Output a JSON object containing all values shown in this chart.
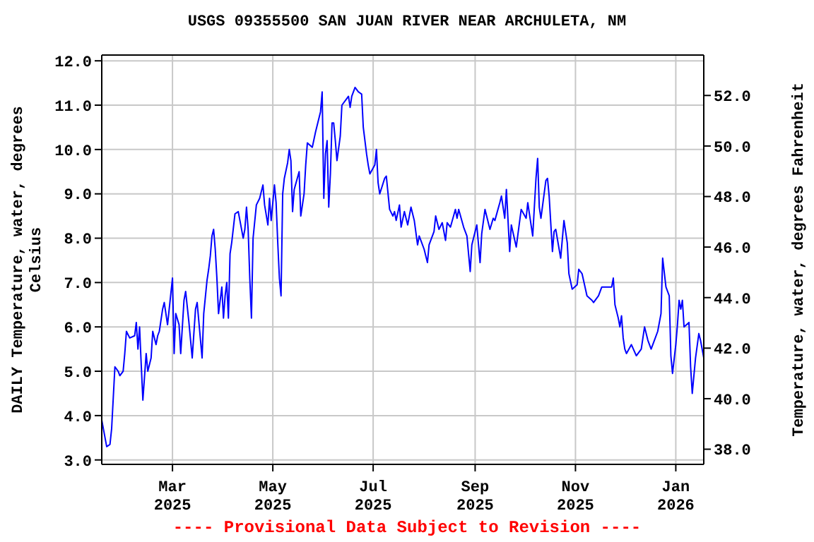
{
  "chart_data": {
    "type": "line",
    "title": "USGS 09355500 SAN JUAN RIVER NEAR ARCHULETA, NM",
    "ylabel": "DAILY Temperature, water, degrees Celsius",
    "y2label": "Temperature, water, degrees Fahrenheit",
    "annotations": [
      "---- Provisional Data Subject to Revision ----"
    ],
    "xlim": [
      "2025-01-17",
      "2026-01-18"
    ],
    "xticks": [
      {
        "value": "2025-03-01",
        "label": "Mar 2025"
      },
      {
        "value": "2025-05-01",
        "label": "May 2025"
      },
      {
        "value": "2025-07-01",
        "label": "Jul 2025"
      },
      {
        "value": "2025-09-01",
        "label": "Sep 2025"
      },
      {
        "value": "2025-11-01",
        "label": "Nov 2025"
      },
      {
        "value": "2026-01-01",
        "label": "Jan 2026"
      }
    ],
    "ylim": [
      2.9,
      12.13
    ],
    "yticks": [
      {
        "value": 3,
        "label": "3.0"
      },
      {
        "value": 4,
        "label": "4.0"
      },
      {
        "value": 5,
        "label": "5.0"
      },
      {
        "value": 6,
        "label": "6.0"
      },
      {
        "value": 7,
        "label": "7.0"
      },
      {
        "value": 8,
        "label": "8.0"
      },
      {
        "value": 9,
        "label": "9.0"
      },
      {
        "value": 10,
        "label": "10.0"
      },
      {
        "value": 11,
        "label": "11.0"
      },
      {
        "value": 12,
        "label": "12.0"
      }
    ],
    "y2lim": [
      37.4,
      53.6
    ],
    "y2ticks": [
      {
        "value": 38,
        "label": "38.0"
      },
      {
        "value": 40,
        "label": "40.0"
      },
      {
        "value": 42,
        "label": "42.0"
      },
      {
        "value": 44,
        "label": "44.0"
      },
      {
        "value": 46,
        "label": "46.0"
      },
      {
        "value": 48,
        "label": "48.0"
      },
      {
        "value": 50,
        "label": "50.0"
      },
      {
        "value": 52,
        "label": "52.0"
      }
    ],
    "grid": true,
    "legend": false,
    "marker": "none",
    "line_style": "solid",
    "series": [
      {
        "color": "#0000ff",
        "x": [
          "2025-01-17",
          "2025-01-20",
          "2025-01-22",
          "2025-01-23",
          "2025-01-25",
          "2025-01-27",
          "2025-01-28",
          "2025-01-30",
          "2025-01-31",
          "2025-02-01",
          "2025-02-03",
          "2025-02-06",
          "2025-02-07",
          "2025-02-08",
          "2025-02-09",
          "2025-02-10",
          "2025-02-11",
          "2025-02-13",
          "2025-02-14",
          "2025-02-16",
          "2025-02-17",
          "2025-02-19",
          "2025-02-20",
          "2025-02-21",
          "2025-02-23",
          "2025-02-24",
          "2025-02-26",
          "2025-02-27",
          "2025-03-01",
          "2025-03-02",
          "2025-03-03",
          "2025-03-05",
          "2025-03-06",
          "2025-03-08",
          "2025-03-09",
          "2025-03-11",
          "2025-03-13",
          "2025-03-15",
          "2025-03-16",
          "2025-03-19",
          "2025-03-20",
          "2025-03-22",
          "2025-03-23",
          "2025-03-24",
          "2025-03-25",
          "2025-03-26",
          "2025-03-27",
          "2025-03-28",
          "2025-03-29",
          "2025-03-31",
          "2025-04-01",
          "2025-04-02",
          "2025-04-03",
          "2025-04-04",
          "2025-04-05",
          "2025-04-06",
          "2025-04-08",
          "2025-04-10",
          "2025-04-11",
          "2025-04-13",
          "2025-04-14",
          "2025-04-15",
          "2025-04-16",
          "2025-04-17",
          "2025-04-18",
          "2025-04-19",
          "2025-04-21",
          "2025-04-23",
          "2025-04-25",
          "2025-04-26",
          "2025-04-28",
          "2025-04-29",
          "2025-04-30",
          "2025-05-02",
          "2025-05-03",
          "2025-05-04",
          "2025-05-05",
          "2025-05-06",
          "2025-05-07",
          "2025-05-08",
          "2025-05-10",
          "2025-05-11",
          "2025-05-12",
          "2025-05-13",
          "2025-05-14",
          "2025-05-17",
          "2025-05-18",
          "2025-05-20",
          "2025-05-21",
          "2025-05-22",
          "2025-05-25",
          "2025-05-27",
          "2025-05-30",
          "2025-05-31",
          "2025-06-01",
          "2025-06-02",
          "2025-06-03",
          "2025-06-04",
          "2025-06-05",
          "2025-06-06",
          "2025-06-07",
          "2025-06-08",
          "2025-06-09",
          "2025-06-11",
          "2025-06-12",
          "2025-06-15",
          "2025-06-16",
          "2025-06-17",
          "2025-06-18",
          "2025-06-20",
          "2025-06-22",
          "2025-06-24",
          "2025-06-25",
          "2025-06-27",
          "2025-06-28",
          "2025-06-29",
          "2025-07-02",
          "2025-07-03",
          "2025-07-04",
          "2025-07-05",
          "2025-07-08",
          "2025-07-09",
          "2025-07-11",
          "2025-07-13",
          "2025-07-14",
          "2025-07-15",
          "2025-07-17",
          "2025-07-18",
          "2025-07-20",
          "2025-07-22",
          "2025-07-24",
          "2025-07-26",
          "2025-07-28",
          "2025-07-29",
          "2025-08-01",
          "2025-08-03",
          "2025-08-04",
          "2025-08-07",
          "2025-08-08",
          "2025-08-10",
          "2025-08-12",
          "2025-08-14",
          "2025-08-15",
          "2025-08-17",
          "2025-08-20",
          "2025-08-21",
          "2025-08-22",
          "2025-08-25",
          "2025-08-27",
          "2025-08-29",
          "2025-08-30",
          "2025-09-02",
          "2025-09-04",
          "2025-09-05",
          "2025-09-07",
          "2025-09-10",
          "2025-09-12",
          "2025-09-13",
          "2025-09-16",
          "2025-09-17",
          "2025-09-19",
          "2025-09-20",
          "2025-09-22",
          "2025-09-23",
          "2025-09-26",
          "2025-09-29",
          "2025-10-02",
          "2025-10-03",
          "2025-10-06",
          "2025-10-08",
          "2025-10-09",
          "2025-10-10",
          "2025-10-11",
          "2025-10-14",
          "2025-10-15",
          "2025-10-16",
          "2025-10-18",
          "2025-10-19",
          "2025-10-20",
          "2025-10-23",
          "2025-10-25",
          "2025-10-27",
          "2025-10-28",
          "2025-10-30",
          "2025-11-02",
          "2025-11-03",
          "2025-11-05",
          "2025-11-08",
          "2025-11-11",
          "2025-11-12",
          "2025-11-15",
          "2025-11-17",
          "2025-11-20",
          "2025-11-23",
          "2025-11-24",
          "2025-11-25",
          "2025-11-27",
          "2025-11-28",
          "2025-11-29",
          "2025-11-30",
          "2025-12-01",
          "2025-12-02",
          "2025-12-05",
          "2025-12-08",
          "2025-12-11",
          "2025-12-13",
          "2025-12-15",
          "2025-12-17",
          "2025-12-19",
          "2025-12-21",
          "2025-12-23",
          "2025-12-24",
          "2025-12-26",
          "2025-12-28",
          "2025-12-29",
          "2025-12-30",
          "2026-01-01",
          "2026-01-02",
          "2026-01-03",
          "2026-01-04",
          "2026-01-05",
          "2026-01-06",
          "2026-01-09",
          "2026-01-10",
          "2026-01-11",
          "2026-01-13",
          "2026-01-15",
          "2026-01-16",
          "2026-01-18"
        ],
        "values": [
          3.9,
          3.3,
          3.35,
          3.7,
          5.1,
          5.0,
          4.9,
          5.0,
          5.4,
          5.9,
          5.75,
          5.8,
          6.1,
          5.5,
          6.0,
          5.15,
          4.35,
          5.4,
          5.0,
          5.3,
          5.9,
          5.6,
          5.8,
          5.9,
          6.4,
          6.55,
          6.05,
          6.4,
          7.1,
          5.4,
          6.3,
          6.05,
          5.4,
          6.6,
          6.8,
          6.1,
          5.3,
          6.4,
          6.55,
          5.3,
          6.3,
          7.05,
          7.3,
          7.6,
          8.05,
          8.2,
          7.75,
          7.1,
          6.3,
          6.9,
          6.2,
          6.7,
          7.0,
          6.2,
          7.65,
          7.9,
          8.55,
          8.6,
          8.4,
          8.0,
          8.2,
          8.7,
          8.2,
          7.1,
          6.2,
          8.0,
          8.75,
          8.9,
          9.2,
          8.75,
          8.3,
          8.9,
          8.4,
          9.2,
          8.8,
          7.9,
          7.1,
          6.7,
          9.0,
          9.35,
          9.7,
          10.0,
          9.75,
          8.6,
          9.1,
          9.5,
          8.5,
          9.0,
          9.65,
          10.15,
          10.05,
          10.4,
          10.85,
          11.3,
          8.9,
          9.9,
          10.2,
          8.7,
          9.45,
          10.6,
          10.6,
          10.2,
          9.75,
          10.3,
          11.0,
          11.15,
          11.2,
          10.95,
          11.2,
          11.4,
          11.3,
          11.25,
          10.5,
          9.9,
          9.65,
          9.45,
          9.65,
          10.0,
          9.25,
          9.0,
          9.35,
          9.4,
          8.65,
          8.5,
          8.6,
          8.4,
          8.75,
          8.25,
          8.6,
          8.3,
          8.7,
          8.4,
          7.85,
          8.05,
          7.75,
          7.45,
          7.85,
          8.15,
          8.5,
          8.2,
          8.35,
          7.95,
          8.35,
          8.25,
          8.65,
          8.45,
          8.65,
          8.25,
          8.05,
          7.25,
          7.85,
          8.3,
          7.45,
          8.1,
          8.65,
          8.2,
          8.45,
          8.4,
          8.8,
          8.95,
          8.45,
          9.1,
          7.7,
          8.3,
          7.8,
          8.65,
          8.45,
          8.8,
          8.05,
          9.35,
          9.8,
          8.7,
          8.45,
          9.3,
          9.35,
          8.95,
          7.7,
          8.15,
          8.2,
          7.55,
          8.4,
          7.9,
          7.2,
          6.85,
          6.95,
          7.3,
          7.2,
          6.7,
          6.6,
          6.55,
          6.7,
          6.9,
          6.9,
          6.9,
          7.1,
          6.5,
          6.2,
          6.0,
          6.25,
          5.75,
          5.5,
          5.4,
          5.6,
          5.35,
          5.5,
          6.0,
          5.7,
          5.5,
          5.7,
          5.9,
          6.3,
          7.55,
          6.9,
          6.7,
          5.35,
          4.95,
          5.6,
          6.05,
          6.6,
          6.4,
          6.6,
          6.0,
          6.1,
          5.1,
          4.5,
          5.3,
          5.85,
          5.7,
          5.3
        ]
      }
    ]
  }
}
